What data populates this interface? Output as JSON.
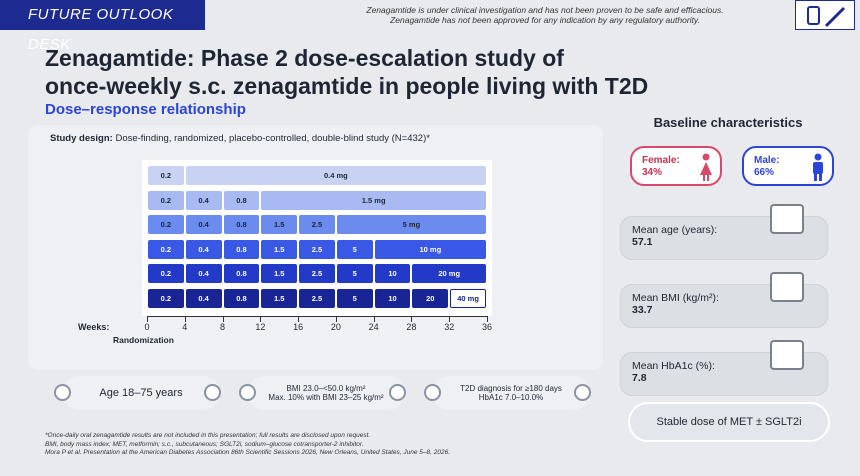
{
  "header": {
    "brand": "FUTURE OUTLOOK DESK",
    "disclaimer": [
      "Zenagamtide is under clinical investigation and has not been proven to be safe and efficacious.",
      "Zenagamtide has not been approved for any indication by any regulatory authority."
    ]
  },
  "title": [
    "Zenagamtide: Phase 2 dose-escalation study of",
    "once-weekly s.c. zenagamtide in people living with T2D"
  ],
  "subtitle": "Dose–response relationship",
  "study_design": {
    "label": "Study design:",
    "text": "Dose-finding, randomized, placebo-controlled, double-blind study (N=432)*"
  },
  "schedule": {
    "rows": [
      [
        "0.2",
        "0.4 mg"
      ],
      [
        "0.2",
        "0.4",
        "0.8",
        "1.5 mg"
      ],
      [
        "0.2",
        "0.4",
        "0.8",
        "1.5",
        "2.5",
        "5 mg"
      ],
      [
        "0.2",
        "0.4",
        "0.8",
        "1.5",
        "2.5",
        "5",
        "10 mg"
      ],
      [
        "0.2",
        "0.4",
        "0.8",
        "1.5",
        "2.5",
        "5",
        "10",
        "20 mg"
      ],
      [
        "0.2",
        "0.4",
        "0.8",
        "1.5",
        "2.5",
        "5",
        "10",
        "20",
        "40 mg"
      ]
    ],
    "weeks_label": "Weeks:",
    "weeks": [
      0,
      4,
      8,
      12,
      16,
      20,
      24,
      28,
      32,
      36
    ],
    "randomization": "Randomization"
  },
  "criteria": [
    [
      "Age 18–75 years"
    ],
    [
      "BMI 23.0–<50.0 kg/m²",
      "Max. 10% with BMI 23–25 kg/m²"
    ],
    [
      "T2D diagnosis for ≥180 days",
      "HbA1c 7.0–10.0%"
    ]
  ],
  "baseline": {
    "heading": "Baseline characteristics",
    "female": {
      "label": "Female:",
      "value": "34%"
    },
    "male": {
      "label": "Male:",
      "value": "66%"
    },
    "cards": [
      {
        "label": "Mean age (years):",
        "value": "57.1"
      },
      {
        "label": "Mean BMI (kg/m²):",
        "value": "33.7"
      },
      {
        "label": "Mean HbA1c (%):",
        "value": "7.8"
      }
    ],
    "stable": "Stable dose of MET ± SGLT2i"
  },
  "footnotes": [
    "*Once-daily oral zenagamtide results are not included in this presentation; full results are disclosed upon request.",
    "BMI, body mass index; MET, metformin; s.c., subcutaneous; SGLT2i, sodium–glucose cotransporter-2 inhibitor.",
    "Mora P et al. Presentation at the American Diabetes Association 86th Scientific Sessions 2026, New Orleans, United States, June 5–8, 2026."
  ]
}
